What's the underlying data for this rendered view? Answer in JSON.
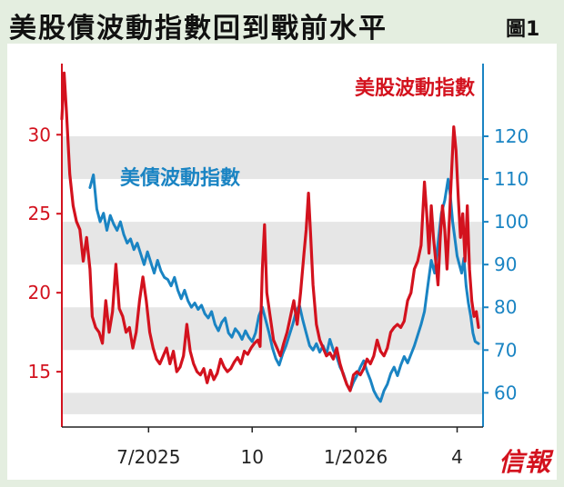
{
  "header": {
    "title": "美股債波動指數回到戰前水平",
    "figure_label": "圖1"
  },
  "brand": {
    "logo_text": "信報"
  },
  "colors": {
    "left_series": "#d3121e",
    "right_series": "#1a84c3",
    "band": "#e6e6e6",
    "background": "#e4eee0"
  },
  "chart_data": {
    "type": "line",
    "title": "美股債波動指數回到戰前水平",
    "x_axis": {
      "ticks": [
        "7/2025",
        "10",
        "1/2026",
        "4"
      ]
    },
    "y_left": {
      "range": [
        11.5,
        34.5
      ],
      "ticks": [
        "15",
        "20",
        "25",
        "30"
      ],
      "color": "#d3121e"
    },
    "y_right": {
      "range": [
        52,
        137
      ],
      "ticks": [
        "60",
        "70",
        "80",
        "90",
        "100",
        "110",
        "120"
      ],
      "color": "#1a84c3"
    },
    "grid": false,
    "series": [
      {
        "name": "美股波動指數",
        "axis": "left",
        "color": "#d3121e",
        "points": [
          [
            "2025-04-15",
            31.0
          ],
          [
            "2025-04-17",
            33.9
          ],
          [
            "2025-04-19",
            31.5
          ],
          [
            "2025-04-22",
            27.5
          ],
          [
            "2025-04-25",
            25.5
          ],
          [
            "2025-04-28",
            24.5
          ],
          [
            "2025-05-01",
            24.0
          ],
          [
            "2025-05-04",
            22.0
          ],
          [
            "2025-05-07",
            23.5
          ],
          [
            "2025-05-10",
            21.5
          ],
          [
            "2025-05-12",
            18.5
          ],
          [
            "2025-05-15",
            17.8
          ],
          [
            "2025-05-18",
            17.5
          ],
          [
            "2025-05-21",
            16.8
          ],
          [
            "2025-05-24",
            19.5
          ],
          [
            "2025-05-27",
            17.5
          ],
          [
            "2025-05-30",
            18.8
          ],
          [
            "2025-06-02",
            21.8
          ],
          [
            "2025-06-05",
            19.0
          ],
          [
            "2025-06-08",
            18.5
          ],
          [
            "2025-06-11",
            17.5
          ],
          [
            "2025-06-14",
            17.8
          ],
          [
            "2025-06-17",
            16.5
          ],
          [
            "2025-06-20",
            17.5
          ],
          [
            "2025-06-23",
            19.5
          ],
          [
            "2025-06-26",
            21.0
          ],
          [
            "2025-06-29",
            19.5
          ],
          [
            "2025-07-02",
            17.5
          ],
          [
            "2025-07-05",
            16.5
          ],
          [
            "2025-07-08",
            15.8
          ],
          [
            "2025-07-11",
            15.5
          ],
          [
            "2025-07-14",
            16.0
          ],
          [
            "2025-07-17",
            16.5
          ],
          [
            "2025-07-20",
            15.5
          ],
          [
            "2025-07-23",
            16.3
          ],
          [
            "2025-07-26",
            15.0
          ],
          [
            "2025-07-29",
            15.3
          ],
          [
            "2025-08-01",
            16.0
          ],
          [
            "2025-08-04",
            18.0
          ],
          [
            "2025-08-07",
            16.3
          ],
          [
            "2025-08-10",
            15.5
          ],
          [
            "2025-08-13",
            15.0
          ],
          [
            "2025-08-16",
            14.8
          ],
          [
            "2025-08-19",
            15.2
          ],
          [
            "2025-08-22",
            14.3
          ],
          [
            "2025-08-25",
            15.1
          ],
          [
            "2025-08-28",
            14.5
          ],
          [
            "2025-08-31",
            14.9
          ],
          [
            "2025-09-03",
            15.8
          ],
          [
            "2025-09-06",
            15.3
          ],
          [
            "2025-09-09",
            15.0
          ],
          [
            "2025-09-12",
            15.2
          ],
          [
            "2025-09-15",
            15.6
          ],
          [
            "2025-09-18",
            15.9
          ],
          [
            "2025-09-21",
            15.5
          ],
          [
            "2025-09-24",
            16.3
          ],
          [
            "2025-09-27",
            16.1
          ],
          [
            "2025-09-30",
            16.5
          ],
          [
            "2025-10-03",
            16.8
          ],
          [
            "2025-10-06",
            17.0
          ],
          [
            "2025-10-08",
            16.6
          ],
          [
            "2025-10-10",
            21.5
          ],
          [
            "2025-10-12",
            24.3
          ],
          [
            "2025-10-14",
            20.0
          ],
          [
            "2025-10-17",
            18.5
          ],
          [
            "2025-10-20",
            17.0
          ],
          [
            "2025-10-23",
            16.5
          ],
          [
            "2025-10-26",
            16.0
          ],
          [
            "2025-10-29",
            16.8
          ],
          [
            "2025-11-01",
            17.5
          ],
          [
            "2025-11-04",
            18.5
          ],
          [
            "2025-11-07",
            19.5
          ],
          [
            "2025-11-10",
            18.0
          ],
          [
            "2025-11-13",
            20.0
          ],
          [
            "2025-11-16",
            22.5
          ],
          [
            "2025-11-18",
            24.0
          ],
          [
            "2025-11-20",
            26.3
          ],
          [
            "2025-11-22",
            23.5
          ],
          [
            "2025-11-24",
            20.5
          ],
          [
            "2025-11-27",
            18.0
          ],
          [
            "2025-11-30",
            17.0
          ],
          [
            "2025-12-03",
            16.5
          ],
          [
            "2025-12-06",
            16.0
          ],
          [
            "2025-12-09",
            16.2
          ],
          [
            "2025-12-12",
            15.8
          ],
          [
            "2025-12-15",
            16.5
          ],
          [
            "2025-12-18",
            15.5
          ],
          [
            "2025-12-21",
            14.8
          ],
          [
            "2025-12-24",
            14.2
          ],
          [
            "2025-12-27",
            13.8
          ],
          [
            "2025-12-30",
            14.8
          ],
          [
            "2026-01-02",
            15.0
          ],
          [
            "2026-01-05",
            14.8
          ],
          [
            "2026-01-08",
            15.2
          ],
          [
            "2026-01-11",
            15.8
          ],
          [
            "2026-01-14",
            15.5
          ],
          [
            "2026-01-17",
            16.0
          ],
          [
            "2026-01-20",
            17.0
          ],
          [
            "2026-01-23",
            16.3
          ],
          [
            "2026-01-26",
            16.0
          ],
          [
            "2026-01-29",
            16.5
          ],
          [
            "2026-02-01",
            17.5
          ],
          [
            "2026-02-04",
            17.8
          ],
          [
            "2026-02-07",
            18.0
          ],
          [
            "2026-02-10",
            17.8
          ],
          [
            "2026-02-13",
            18.2
          ],
          [
            "2026-02-16",
            19.5
          ],
          [
            "2026-02-19",
            20.0
          ],
          [
            "2026-02-22",
            21.5
          ],
          [
            "2026-02-25",
            22.0
          ],
          [
            "2026-02-28",
            23.0
          ],
          [
            "2026-03-03",
            27.0
          ],
          [
            "2026-03-05",
            25.0
          ],
          [
            "2026-03-07",
            22.5
          ],
          [
            "2026-03-09",
            25.5
          ],
          [
            "2026-03-11",
            23.5
          ],
          [
            "2026-03-13",
            22.0
          ],
          [
            "2026-03-15",
            20.5
          ],
          [
            "2026-03-17",
            23.5
          ],
          [
            "2026-03-19",
            25.5
          ],
          [
            "2026-03-21",
            24.0
          ],
          [
            "2026-03-23",
            21.5
          ],
          [
            "2026-03-25",
            24.5
          ],
          [
            "2026-03-27",
            27.5
          ],
          [
            "2026-03-29",
            30.5
          ],
          [
            "2026-03-31",
            29.0
          ],
          [
            "2026-04-02",
            26.0
          ],
          [
            "2026-04-04",
            23.5
          ],
          [
            "2026-04-06",
            25.0
          ],
          [
            "2026-04-08",
            22.0
          ],
          [
            "2026-04-10",
            25.5
          ],
          [
            "2026-04-12",
            21.5
          ],
          [
            "2026-04-14",
            19.5
          ],
          [
            "2026-04-16",
            18.5
          ],
          [
            "2026-04-18",
            18.8
          ],
          [
            "2026-04-20",
            17.8
          ]
        ]
      },
      {
        "name": "美債波動指數",
        "axis": "right",
        "color": "#1a84c3",
        "points": [
          [
            "2025-05-10",
            108.0
          ],
          [
            "2025-05-13",
            111.0
          ],
          [
            "2025-05-16",
            103.0
          ],
          [
            "2025-05-19",
            100.0
          ],
          [
            "2025-05-22",
            102.0
          ],
          [
            "2025-05-25",
            98.0
          ],
          [
            "2025-05-28",
            101.5
          ],
          [
            "2025-05-31",
            99.5
          ],
          [
            "2025-06-03",
            98.0
          ],
          [
            "2025-06-06",
            100.0
          ],
          [
            "2025-06-09",
            97.0
          ],
          [
            "2025-06-12",
            95.0
          ],
          [
            "2025-06-15",
            96.0
          ],
          [
            "2025-06-18",
            93.5
          ],
          [
            "2025-06-21",
            95.0
          ],
          [
            "2025-06-24",
            92.5
          ],
          [
            "2025-06-27",
            90.0
          ],
          [
            "2025-06-30",
            93.0
          ],
          [
            "2025-07-03",
            90.5
          ],
          [
            "2025-07-06",
            88.0
          ],
          [
            "2025-07-09",
            91.0
          ],
          [
            "2025-07-12",
            88.5
          ],
          [
            "2025-07-15",
            87.0
          ],
          [
            "2025-07-18",
            86.5
          ],
          [
            "2025-07-21",
            85.0
          ],
          [
            "2025-07-24",
            87.0
          ],
          [
            "2025-07-27",
            84.0
          ],
          [
            "2025-07-30",
            82.0
          ],
          [
            "2025-08-02",
            84.0
          ],
          [
            "2025-08-05",
            81.5
          ],
          [
            "2025-08-08",
            80.0
          ],
          [
            "2025-08-11",
            81.0
          ],
          [
            "2025-08-14",
            79.5
          ],
          [
            "2025-08-17",
            80.5
          ],
          [
            "2025-08-20",
            78.5
          ],
          [
            "2025-08-23",
            77.5
          ],
          [
            "2025-08-26",
            79.0
          ],
          [
            "2025-08-29",
            76.0
          ],
          [
            "2025-09-01",
            74.5
          ],
          [
            "2025-09-04",
            76.5
          ],
          [
            "2025-09-07",
            77.5
          ],
          [
            "2025-09-10",
            74.0
          ],
          [
            "2025-09-13",
            73.0
          ],
          [
            "2025-09-16",
            75.0
          ],
          [
            "2025-09-19",
            74.0
          ],
          [
            "2025-09-22",
            72.5
          ],
          [
            "2025-09-25",
            74.5
          ],
          [
            "2025-09-28",
            73.0
          ],
          [
            "2025-10-01",
            72.0
          ],
          [
            "2025-10-04",
            74.0
          ],
          [
            "2025-10-07",
            78.0
          ],
          [
            "2025-10-10",
            80.0
          ],
          [
            "2025-10-13",
            77.0
          ],
          [
            "2025-10-16",
            74.0
          ],
          [
            "2025-10-19",
            70.5
          ],
          [
            "2025-10-22",
            68.0
          ],
          [
            "2025-10-25",
            66.5
          ],
          [
            "2025-10-28",
            69.0
          ],
          [
            "2025-10-31",
            71.0
          ],
          [
            "2025-11-03",
            73.5
          ],
          [
            "2025-11-06",
            76.0
          ],
          [
            "2025-11-09",
            79.0
          ],
          [
            "2025-11-12",
            80.5
          ],
          [
            "2025-11-15",
            77.0
          ],
          [
            "2025-11-18",
            74.0
          ],
          [
            "2025-11-21",
            71.0
          ],
          [
            "2025-11-24",
            70.0
          ],
          [
            "2025-11-27",
            71.5
          ],
          [
            "2025-11-30",
            69.5
          ],
          [
            "2025-12-03",
            71.0
          ],
          [
            "2025-12-06",
            69.0
          ],
          [
            "2025-12-09",
            72.5
          ],
          [
            "2025-12-12",
            70.0
          ],
          [
            "2025-12-15",
            68.5
          ],
          [
            "2025-12-18",
            66.0
          ],
          [
            "2025-12-21",
            64.5
          ],
          [
            "2025-12-24",
            62.0
          ],
          [
            "2025-12-27",
            60.5
          ],
          [
            "2025-12-30",
            62.5
          ],
          [
            "2026-01-02",
            64.0
          ],
          [
            "2026-01-05",
            66.0
          ],
          [
            "2026-01-08",
            67.5
          ],
          [
            "2026-01-11",
            65.0
          ],
          [
            "2026-01-14",
            63.0
          ],
          [
            "2026-01-17",
            60.5
          ],
          [
            "2026-01-20",
            59.0
          ],
          [
            "2026-01-23",
            58.0
          ],
          [
            "2026-01-26",
            60.5
          ],
          [
            "2026-01-29",
            62.0
          ],
          [
            "2026-02-01",
            64.5
          ],
          [
            "2026-02-04",
            66.0
          ],
          [
            "2026-02-07",
            64.0
          ],
          [
            "2026-02-10",
            66.5
          ],
          [
            "2026-02-13",
            68.5
          ],
          [
            "2026-02-16",
            67.0
          ],
          [
            "2026-02-19",
            69.0
          ],
          [
            "2026-02-22",
            71.0
          ],
          [
            "2026-02-25",
            73.5
          ],
          [
            "2026-02-28",
            76.0
          ],
          [
            "2026-03-03",
            79.0
          ],
          [
            "2026-03-06",
            85.0
          ],
          [
            "2026-03-09",
            91.0
          ],
          [
            "2026-03-12",
            88.0
          ],
          [
            "2026-03-15",
            95.0
          ],
          [
            "2026-03-18",
            102.0
          ],
          [
            "2026-03-21",
            105.0
          ],
          [
            "2026-03-24",
            110.0
          ],
          [
            "2026-03-26",
            106.0
          ],
          [
            "2026-03-28",
            100.0
          ],
          [
            "2026-03-30",
            96.0
          ],
          [
            "2026-04-01",
            92.0
          ],
          [
            "2026-04-03",
            90.0
          ],
          [
            "2026-04-05",
            88.0
          ],
          [
            "2026-04-07",
            91.5
          ],
          [
            "2026-04-09",
            85.0
          ],
          [
            "2026-04-11",
            81.0
          ],
          [
            "2026-04-13",
            78.0
          ],
          [
            "2026-04-15",
            74.0
          ],
          [
            "2026-04-17",
            72.0
          ],
          [
            "2026-04-20",
            71.5
          ]
        ]
      }
    ]
  }
}
